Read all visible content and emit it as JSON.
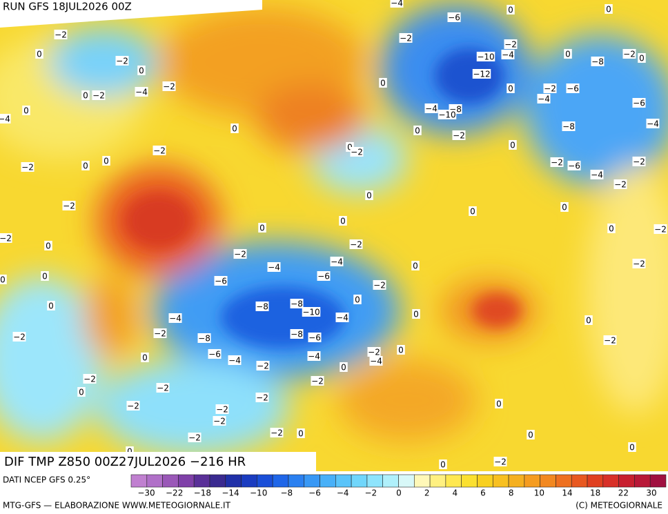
{
  "header": {
    "run": "RUN GFS 18JUL2026 00Z"
  },
  "footer": {
    "product": "DIF TMP Z850 00Z27JUL2026 −216 HR",
    "source": "DATI NCEP GFS 0.25°",
    "credit": "MTG-GFS — ELABORAZIONE WWW.METEOGIORNALE.IT",
    "copyright": "(C) METEOGIORNALE"
  },
  "legend": {
    "labels": [
      "−30",
      "−22",
      "−18",
      "−14",
      "−10",
      "−8",
      "−6",
      "−4",
      "−2",
      "0",
      "2",
      "4",
      "6",
      "8",
      "10",
      "14",
      "18",
      "22",
      "30"
    ],
    "colors": [
      "#c080d0",
      "#b070c8",
      "#9a58b8",
      "#7f40a8",
      "#5a3098",
      "#3a2a90",
      "#2030a8",
      "#1a3cc0",
      "#1a4fd8",
      "#1f66e8",
      "#2a80f0",
      "#3898f5",
      "#48b0f8",
      "#5ac4fa",
      "#70d6fb",
      "#8ee4fc",
      "#b0f0fb",
      "#d8f8f8",
      "#fff8b8",
      "#fff080",
      "#ffe850",
      "#fbe030",
      "#f8d020",
      "#f8c020",
      "#f5b020",
      "#f59c20",
      "#f28820",
      "#ee7020",
      "#e85820",
      "#e04020",
      "#d83028",
      "#c82030",
      "#b81838",
      "#a01040"
    ]
  },
  "contour_labels": [
    "−4",
    "−6",
    "0",
    "0",
    "−2",
    "0",
    "−2",
    "−2",
    "−4",
    "−10",
    "−8",
    "0",
    "−2",
    "0",
    "−2",
    "0",
    "−12",
    "−4",
    "−2",
    "0",
    "−2",
    "0",
    "0",
    "−2",
    "−6",
    "−4",
    "−6",
    "−4",
    "−8",
    "−10",
    "0",
    "−4",
    "0",
    "0",
    "−2",
    "−8",
    "−4",
    "0",
    "−2",
    "0",
    "−2",
    "0",
    "0",
    "−2",
    "−2",
    "−6",
    "−2",
    "−4",
    "−2",
    "0",
    "−2",
    "0",
    "0",
    "0",
    "0",
    "0",
    "−2",
    "−2",
    "0",
    "−2",
    "−2",
    "−4",
    "0",
    "−2",
    "−4",
    "−6",
    "−6",
    "0",
    "0",
    "−2",
    "0",
    "−8",
    "−8",
    "−10",
    "0",
    "−4",
    "−4",
    "0",
    "0",
    "−2",
    "−2",
    "−8",
    "−8",
    "−6",
    "−2",
    "−2",
    "0",
    "−6",
    "−4",
    "−4",
    "−4",
    "−2",
    "0",
    "0",
    "−2",
    "−2",
    "0",
    "−2",
    "−2",
    "−2",
    "−2",
    "−2",
    "0",
    "−2",
    "−2",
    "0",
    "0",
    "0",
    "−2",
    "0",
    "0"
  ]
}
